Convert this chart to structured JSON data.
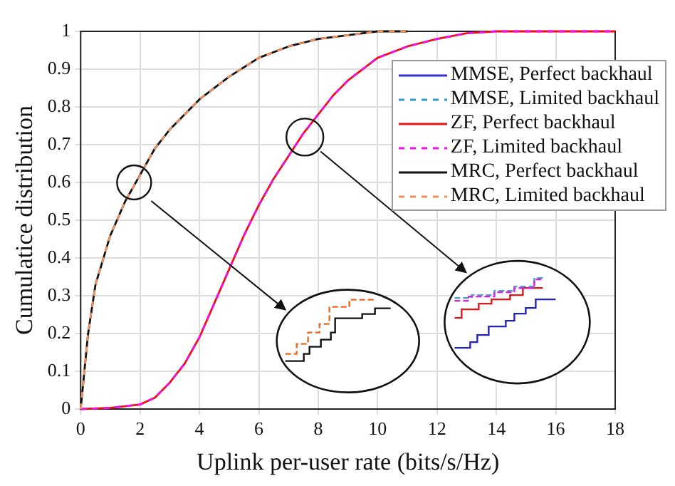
{
  "chart_data": {
    "type": "line",
    "xlabel": "Uplink per-user rate (bits/s/Hz)",
    "ylabel": "Cumulatice distribution",
    "xlim": [
      0,
      18
    ],
    "xticks": [
      0,
      2,
      4,
      6,
      8,
      10,
      12,
      14,
      16,
      18
    ],
    "ylim": [
      0,
      1
    ],
    "yticks": [
      0,
      0.1,
      0.2,
      0.3,
      0.4,
      0.5,
      0.6,
      0.7,
      0.8,
      0.9,
      1
    ],
    "grid": true,
    "legend": "top right",
    "marker": "none",
    "series": [
      {
        "name": "MMSE, Perfect backhaul",
        "color": "#3333cc",
        "line_style": "solid"
      },
      {
        "name": "MMSE, Limited backhaul",
        "color": "#3399cc",
        "line_style": "dashed"
      },
      {
        "name": "ZF, Perfect backhaul",
        "color": "#ee1111",
        "line_style": "solid",
        "x": [
          0,
          1,
          2,
          2.5,
          3,
          3.5,
          4,
          4.5,
          5,
          5.5,
          6,
          6.5,
          7,
          7.5,
          8,
          8.5,
          9,
          10,
          11,
          12,
          13,
          14,
          18
        ],
        "values": [
          0,
          0.003,
          0.012,
          0.03,
          0.07,
          0.12,
          0.19,
          0.28,
          0.37,
          0.46,
          0.54,
          0.61,
          0.67,
          0.73,
          0.78,
          0.83,
          0.87,
          0.93,
          0.96,
          0.98,
          0.995,
          1,
          1
        ]
      },
      {
        "name": "ZF, Limited backhaul",
        "color": "#ee11ee",
        "line_style": "dashed",
        "x": [
          0,
          1,
          2,
          2.5,
          3,
          3.5,
          4,
          4.5,
          5,
          5.5,
          6,
          6.5,
          7,
          7.5,
          8,
          8.5,
          9,
          10,
          11,
          12,
          13,
          14,
          18
        ],
        "values": [
          0,
          0.003,
          0.012,
          0.03,
          0.07,
          0.12,
          0.19,
          0.28,
          0.37,
          0.46,
          0.54,
          0.61,
          0.67,
          0.73,
          0.78,
          0.83,
          0.87,
          0.93,
          0.96,
          0.98,
          0.995,
          1,
          1
        ]
      },
      {
        "name": "MRC, Perfect backhaul",
        "color": "#111111",
        "line_style": "solid",
        "x": [
          0,
          0.25,
          0.5,
          1,
          1.5,
          2,
          2.5,
          3,
          4,
          5,
          6,
          7,
          8,
          9,
          10,
          11
        ],
        "values": [
          0,
          0.2,
          0.33,
          0.46,
          0.55,
          0.62,
          0.69,
          0.74,
          0.82,
          0.88,
          0.93,
          0.96,
          0.98,
          0.99,
          1,
          1
        ]
      },
      {
        "name": "MRC, Limited backhaul",
        "color": "#f09060",
        "line_style": "dashed",
        "x": [
          0,
          0.25,
          0.5,
          1,
          1.5,
          2,
          2.5,
          3,
          4,
          5,
          6,
          7,
          8,
          9,
          10,
          11
        ],
        "values": [
          0,
          0.2,
          0.33,
          0.46,
          0.55,
          0.62,
          0.69,
          0.74,
          0.82,
          0.88,
          0.93,
          0.96,
          0.98,
          0.99,
          1,
          1
        ]
      }
    ]
  }
}
